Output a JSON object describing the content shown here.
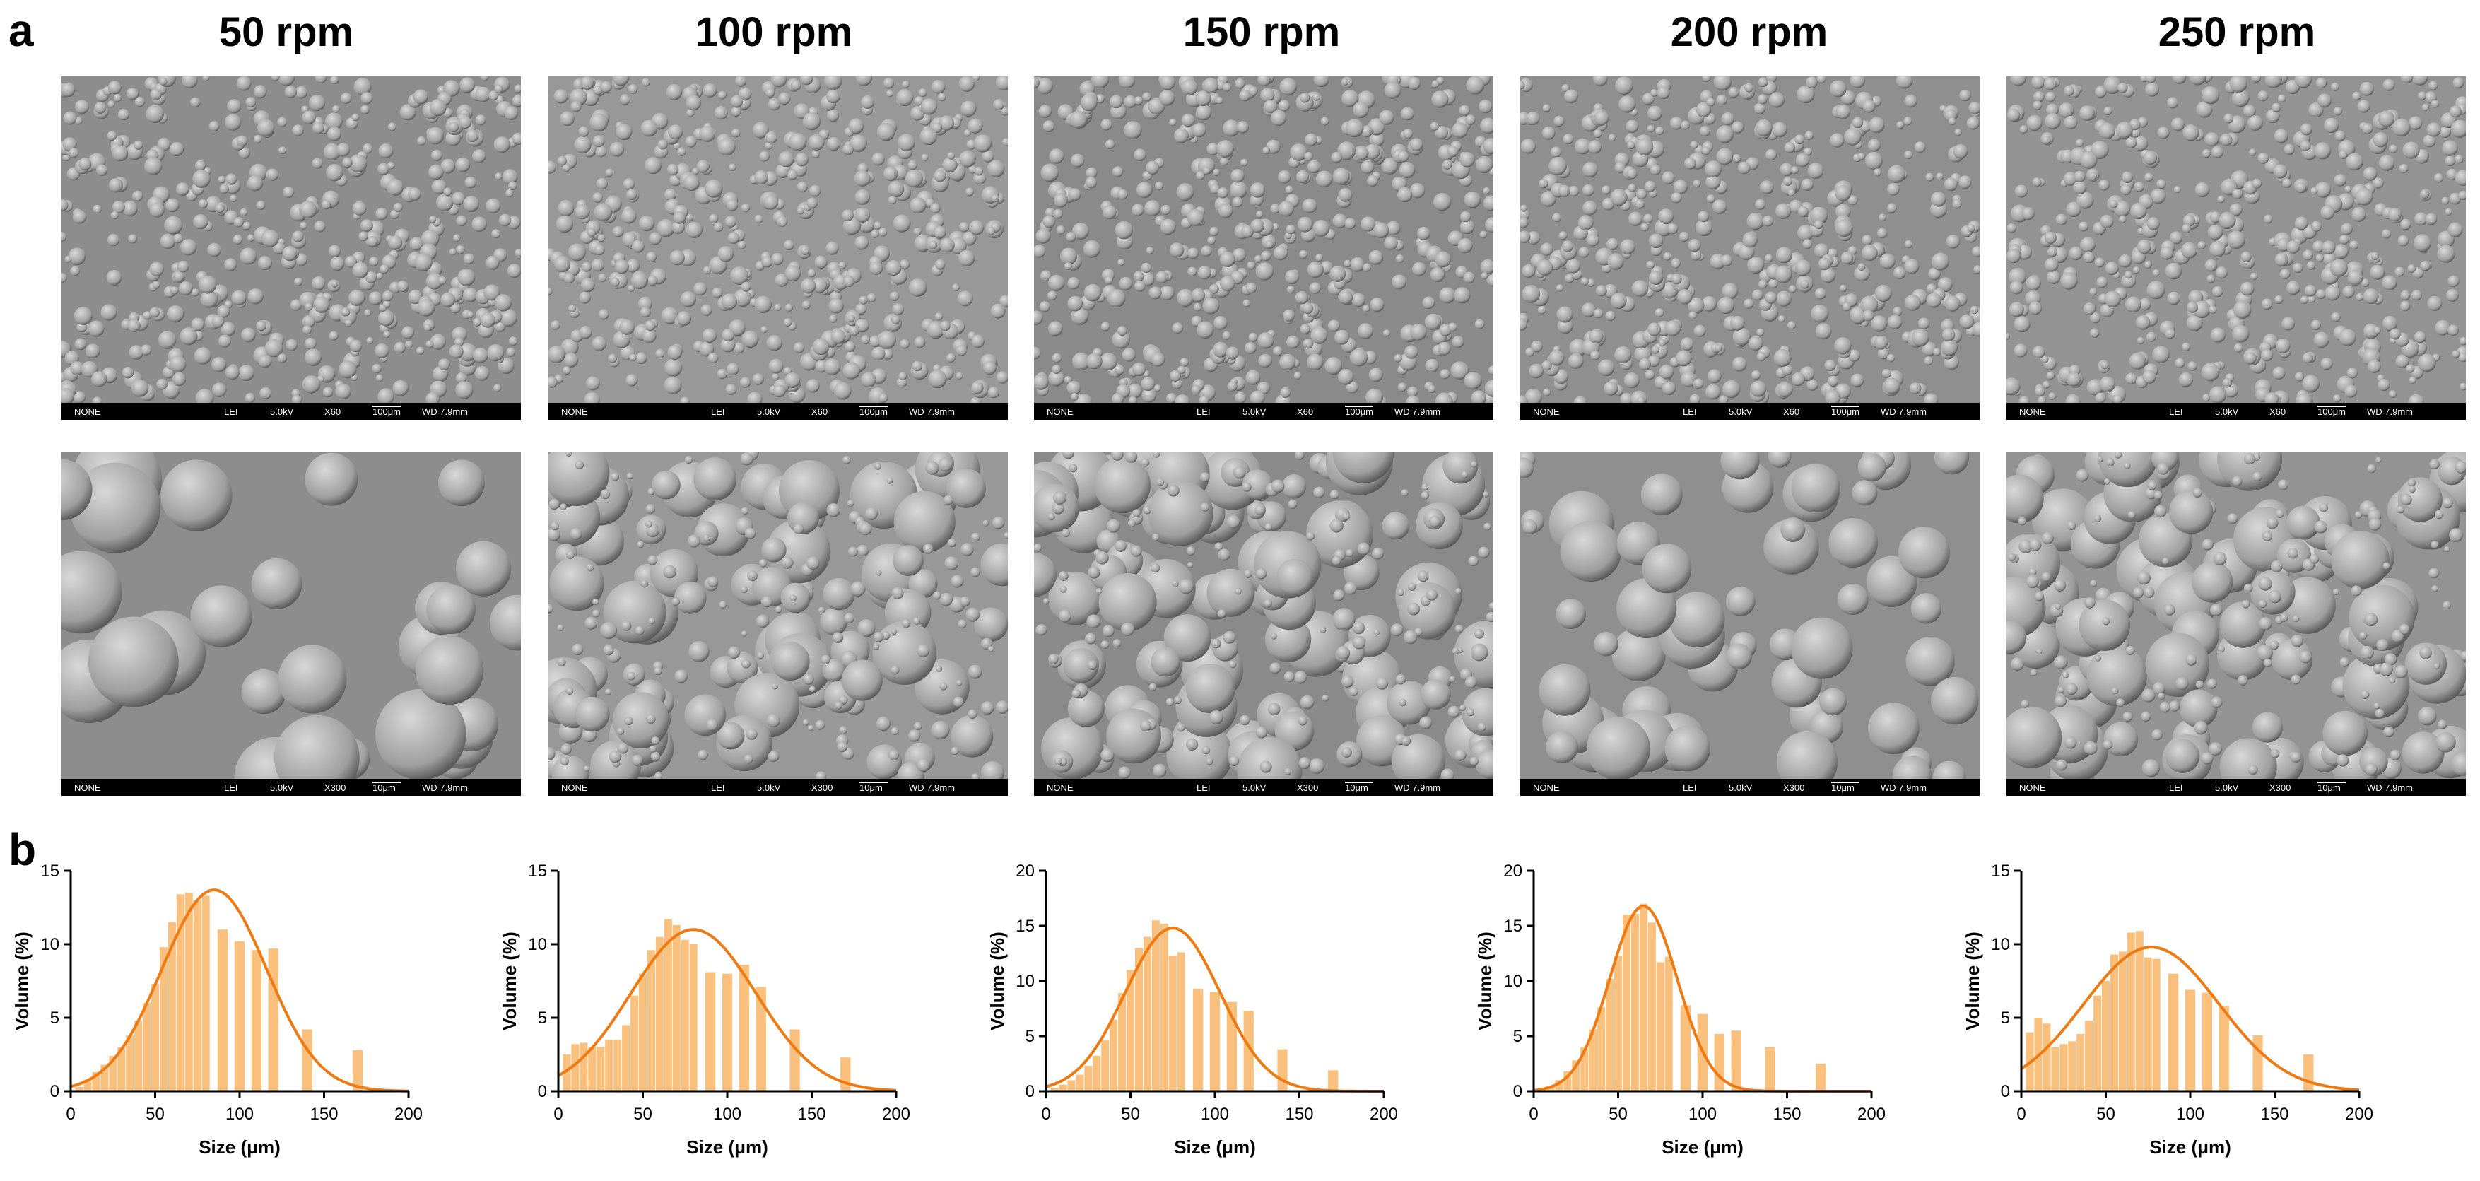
{
  "panels": {
    "a": "a",
    "b": "b"
  },
  "columns": [
    {
      "title": "50 rpm"
    },
    {
      "title": "100 rpm"
    },
    {
      "title": "150 rpm"
    },
    {
      "title": "200 rpm"
    },
    {
      "title": "250 rpm"
    }
  ],
  "sem_rows": [
    {
      "magnification": "X60",
      "scale": "100μm"
    },
    {
      "magnification": "X300",
      "scale": "10μm"
    }
  ],
  "sem_info": {
    "mode": "NONE",
    "detector": "LEI",
    "voltage": "5.0kV",
    "wd": "WD 7.9mm"
  },
  "sem_style": {
    "background": [
      "#8d8d8d",
      "#989898",
      "#8a8a8a",
      "#8f8f8f",
      "#939393"
    ],
    "sphere_light": "#d8d8d8",
    "sphere_dark": "#5a5a5a"
  },
  "chart_style": {
    "bar_color": "#f9c07e",
    "curve_color": "#f07a12",
    "axis_color": "#000000"
  },
  "chart_data": [
    {
      "type": "bar",
      "title": "50 rpm",
      "xlabel": "Size (μm)",
      "ylabel": "Volume (%)",
      "xlim": [
        0,
        200
      ],
      "ylim": [
        0,
        15
      ],
      "xticks": [
        0,
        50,
        100,
        150,
        200
      ],
      "yticks": [
        0,
        5,
        10,
        15
      ],
      "bars": {
        "x": [
          5,
          10,
          15,
          20,
          25,
          30,
          35,
          40,
          45,
          50,
          55,
          60,
          65,
          70,
          75,
          80,
          90,
          100,
          110,
          120,
          140,
          170
        ],
        "values": [
          0.3,
          0.8,
          1.3,
          1.8,
          2.4,
          3.0,
          3.8,
          4.8,
          6.0,
          7.3,
          9.8,
          11.5,
          13.4,
          13.5,
          13.0,
          13.3,
          11.0,
          10.2,
          9.6,
          9.7,
          4.2,
          2.8
        ]
      },
      "fit": {
        "name": "Gaussian fit",
        "mean": 85,
        "sd": 31,
        "peak": 13.7
      }
    },
    {
      "type": "bar",
      "title": "100 rpm",
      "xlabel": "Size (μm)",
      "ylabel": "Volume (%)",
      "xlim": [
        0,
        200
      ],
      "ylim": [
        0,
        15
      ],
      "xticks": [
        0,
        50,
        100,
        150,
        200
      ],
      "yticks": [
        0,
        5,
        10,
        15
      ],
      "bars": {
        "x": [
          5,
          10,
          15,
          20,
          25,
          30,
          35,
          40,
          45,
          50,
          55,
          60,
          65,
          70,
          75,
          80,
          90,
          100,
          110,
          120,
          140,
          170
        ],
        "values": [
          2.5,
          3.2,
          3.3,
          3.0,
          3.0,
          3.5,
          3.5,
          4.5,
          6.5,
          8.0,
          9.6,
          10.5,
          11.7,
          11.3,
          10.3,
          10.0,
          8.1,
          8.0,
          8.6,
          7.1,
          4.2,
          2.3
        ]
      },
      "fit": {
        "name": "Gaussian fit",
        "mean": 80,
        "sd": 37,
        "peak": 11.0
      }
    },
    {
      "type": "bar",
      "title": "150 rpm",
      "xlabel": "Size (μm)",
      "ylabel": "Volume (%)",
      "xlim": [
        0,
        200
      ],
      "ylim": [
        0,
        20
      ],
      "xticks": [
        0,
        50,
        100,
        150,
        200
      ],
      "yticks": [
        0,
        5,
        10,
        15,
        20
      ],
      "bars": {
        "x": [
          5,
          10,
          15,
          20,
          25,
          30,
          35,
          40,
          45,
          50,
          55,
          60,
          65,
          70,
          75,
          80,
          90,
          100,
          110,
          120,
          140,
          170
        ],
        "values": [
          0.3,
          0.6,
          1.0,
          1.5,
          2.3,
          3.2,
          4.6,
          6.5,
          8.9,
          11.0,
          13.0,
          14.0,
          15.5,
          15.2,
          12.3,
          12.6,
          9.3,
          9.0,
          8.1,
          7.3,
          3.8,
          1.9
        ]
      },
      "fit": {
        "name": "Gaussian fit",
        "mean": 75,
        "sd": 28,
        "peak": 14.8
      }
    },
    {
      "type": "bar",
      "title": "200 rpm",
      "xlabel": "Size (μm)",
      "ylabel": "Volume (%)",
      "xlim": [
        0,
        200
      ],
      "ylim": [
        0,
        20
      ],
      "xticks": [
        0,
        50,
        100,
        150,
        200
      ],
      "yticks": [
        0,
        5,
        10,
        15,
        20
      ],
      "bars": {
        "x": [
          5,
          10,
          15,
          20,
          25,
          30,
          35,
          40,
          45,
          50,
          55,
          60,
          65,
          70,
          75,
          80,
          90,
          100,
          110,
          120,
          140,
          170
        ],
        "values": [
          0.2,
          0.5,
          1.0,
          1.8,
          2.8,
          4.0,
          5.6,
          7.6,
          10.2,
          12.3,
          16.0,
          16.1,
          17.0,
          15.3,
          11.7,
          12.2,
          7.8,
          7.0,
          5.2,
          5.5,
          4.0,
          2.5
        ]
      },
      "fit": {
        "name": "Gaussian fit",
        "mean": 65,
        "sd": 20,
        "peak": 16.8
      }
    },
    {
      "type": "bar",
      "title": "250 rpm",
      "xlabel": "Size (μm)",
      "ylabel": "Volume (%)",
      "xlim": [
        0,
        200
      ],
      "ylim": [
        0,
        15
      ],
      "xticks": [
        0,
        50,
        100,
        150,
        200
      ],
      "yticks": [
        0,
        5,
        10,
        15
      ],
      "bars": {
        "x": [
          5,
          10,
          15,
          20,
          25,
          30,
          35,
          40,
          45,
          50,
          55,
          60,
          65,
          70,
          75,
          80,
          90,
          100,
          110,
          120,
          140,
          170
        ],
        "values": [
          4.0,
          5.0,
          4.6,
          3.0,
          3.2,
          3.4,
          3.9,
          4.8,
          6.5,
          7.5,
          9.3,
          9.5,
          10.8,
          10.9,
          9.1,
          9.0,
          8.0,
          6.9,
          6.7,
          5.8,
          3.8,
          2.5
        ]
      },
      "fit": {
        "name": "Gaussian fit",
        "mean": 77,
        "sd": 40,
        "peak": 9.8
      }
    }
  ]
}
